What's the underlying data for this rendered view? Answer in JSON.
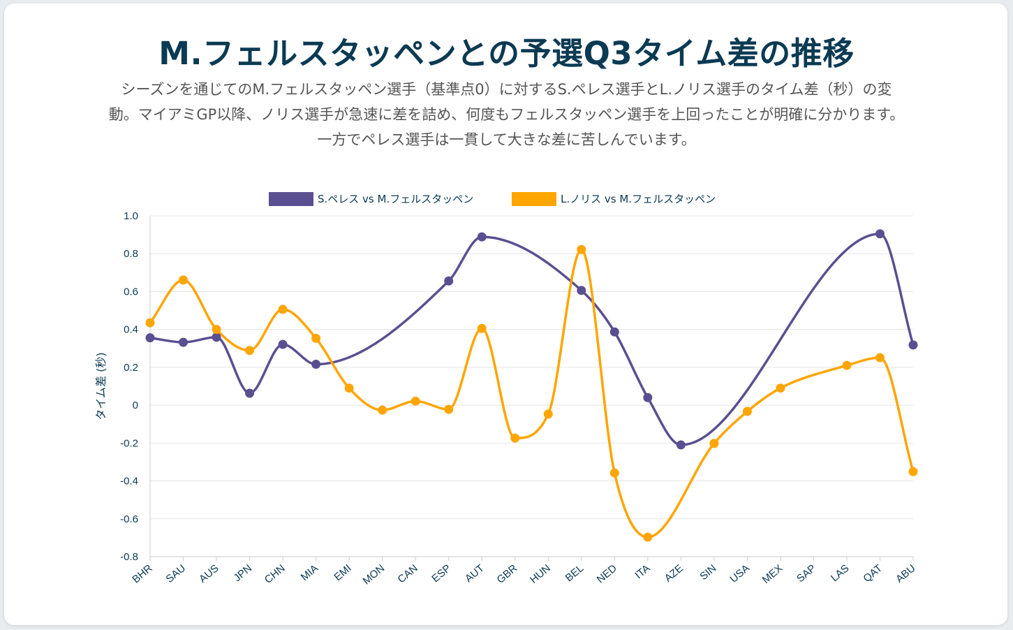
{
  "title": "M.フェルスタッペンとの予選Q3タイム差の推移",
  "subtitle": "シーズンを通じてのM.フェルスタッペン選手（基準点0）に対するS.ペレス選手とL.ノリス選手のタイム差（秒）の変動。マイアミGP以降、ノリス選手が急速に差を詰め、何度もフェルスタッペン選手を上回ったことが明確に分かります。一方でペレス選手は一貫して大きな差に苦しんでいます。",
  "chart_data": {
    "type": "line",
    "categories": [
      "BHR",
      "SAU",
      "AUS",
      "JPN",
      "CHN",
      "MIA",
      "EMI",
      "MON",
      "CAN",
      "ESP",
      "AUT",
      "GBR",
      "HUN",
      "BEL",
      "NED",
      "ITA",
      "AZE",
      "SIN",
      "USA",
      "MEX",
      "SAP",
      "LAS",
      "QAT",
      "ABU"
    ],
    "series": [
      {
        "name": "S.ペレス vs M.フェルスタッペン",
        "color": "#5a4f91",
        "values": [
          0.356,
          0.332,
          0.359,
          0.063,
          0.321,
          0.216,
          null,
          null,
          null,
          0.656,
          0.889,
          null,
          null,
          0.606,
          0.387,
          0.04,
          -0.21,
          null,
          null,
          null,
          null,
          null,
          0.905,
          0.318
        ]
      },
      {
        "name": "L.ノリス vs M.フェルスタッペン",
        "color": "#ffa500",
        "values": [
          0.435,
          0.661,
          0.4,
          0.289,
          0.506,
          0.353,
          0.09,
          -0.026,
          0.021,
          -0.022,
          0.405,
          -0.174,
          -0.047,
          0.822,
          -0.358,
          -0.697,
          null,
          -0.202,
          -0.033,
          0.09,
          null,
          0.21,
          0.251,
          -0.351
        ]
      }
    ],
    "xlabel": "",
    "ylabel": "タイム差 (秒)",
    "ylim": [
      -0.8,
      1.0
    ],
    "yticks": [
      "1.0",
      "0.8",
      "0.6",
      "0.4",
      "0.2",
      "0",
      "-0.2",
      "-0.4",
      "-0.6",
      "-0.8"
    ],
    "legend_position": "top",
    "grid": true,
    "span_gaps": true
  }
}
